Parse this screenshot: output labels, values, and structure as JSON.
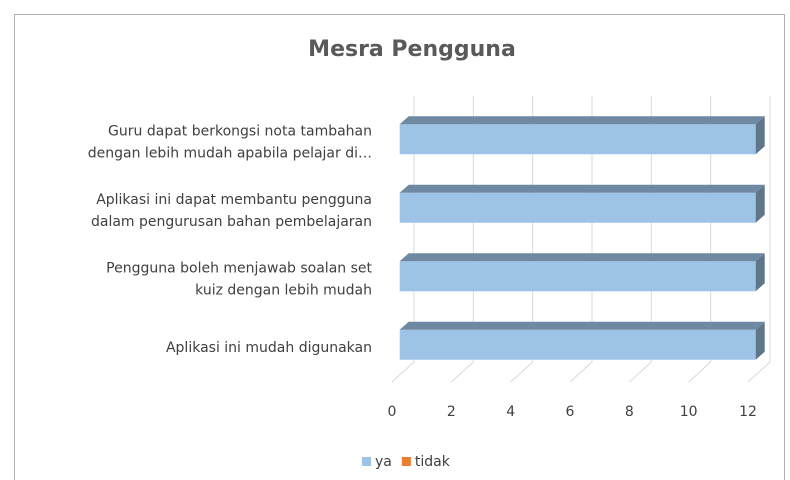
{
  "chart_data": {
    "type": "bar3d",
    "orientation": "horizontal",
    "title": "Mesra Pengguna",
    "categories": [
      "Guru dapat berkongsi nota tambahan dengan lebih mudah apabila pelajar di…",
      "Aplikasi ini dapat membantu pengguna dalam pengurusan bahan pembelajaran",
      "Pengguna boleh menjawab soalan set kuiz dengan lebih mudah",
      "Aplikasi ini mudah digunakan"
    ],
    "series": [
      {
        "name": "ya",
        "color": "#9dc3e6",
        "values": [
          12,
          12,
          12,
          12
        ]
      },
      {
        "name": "tidak",
        "color": "#ed7d31",
        "values": [
          0,
          0,
          0,
          0
        ]
      }
    ],
    "xlim": [
      0,
      12
    ],
    "xticks": [
      0,
      2,
      4,
      6,
      8,
      10,
      12
    ],
    "grid": true,
    "legend": "bottom"
  }
}
